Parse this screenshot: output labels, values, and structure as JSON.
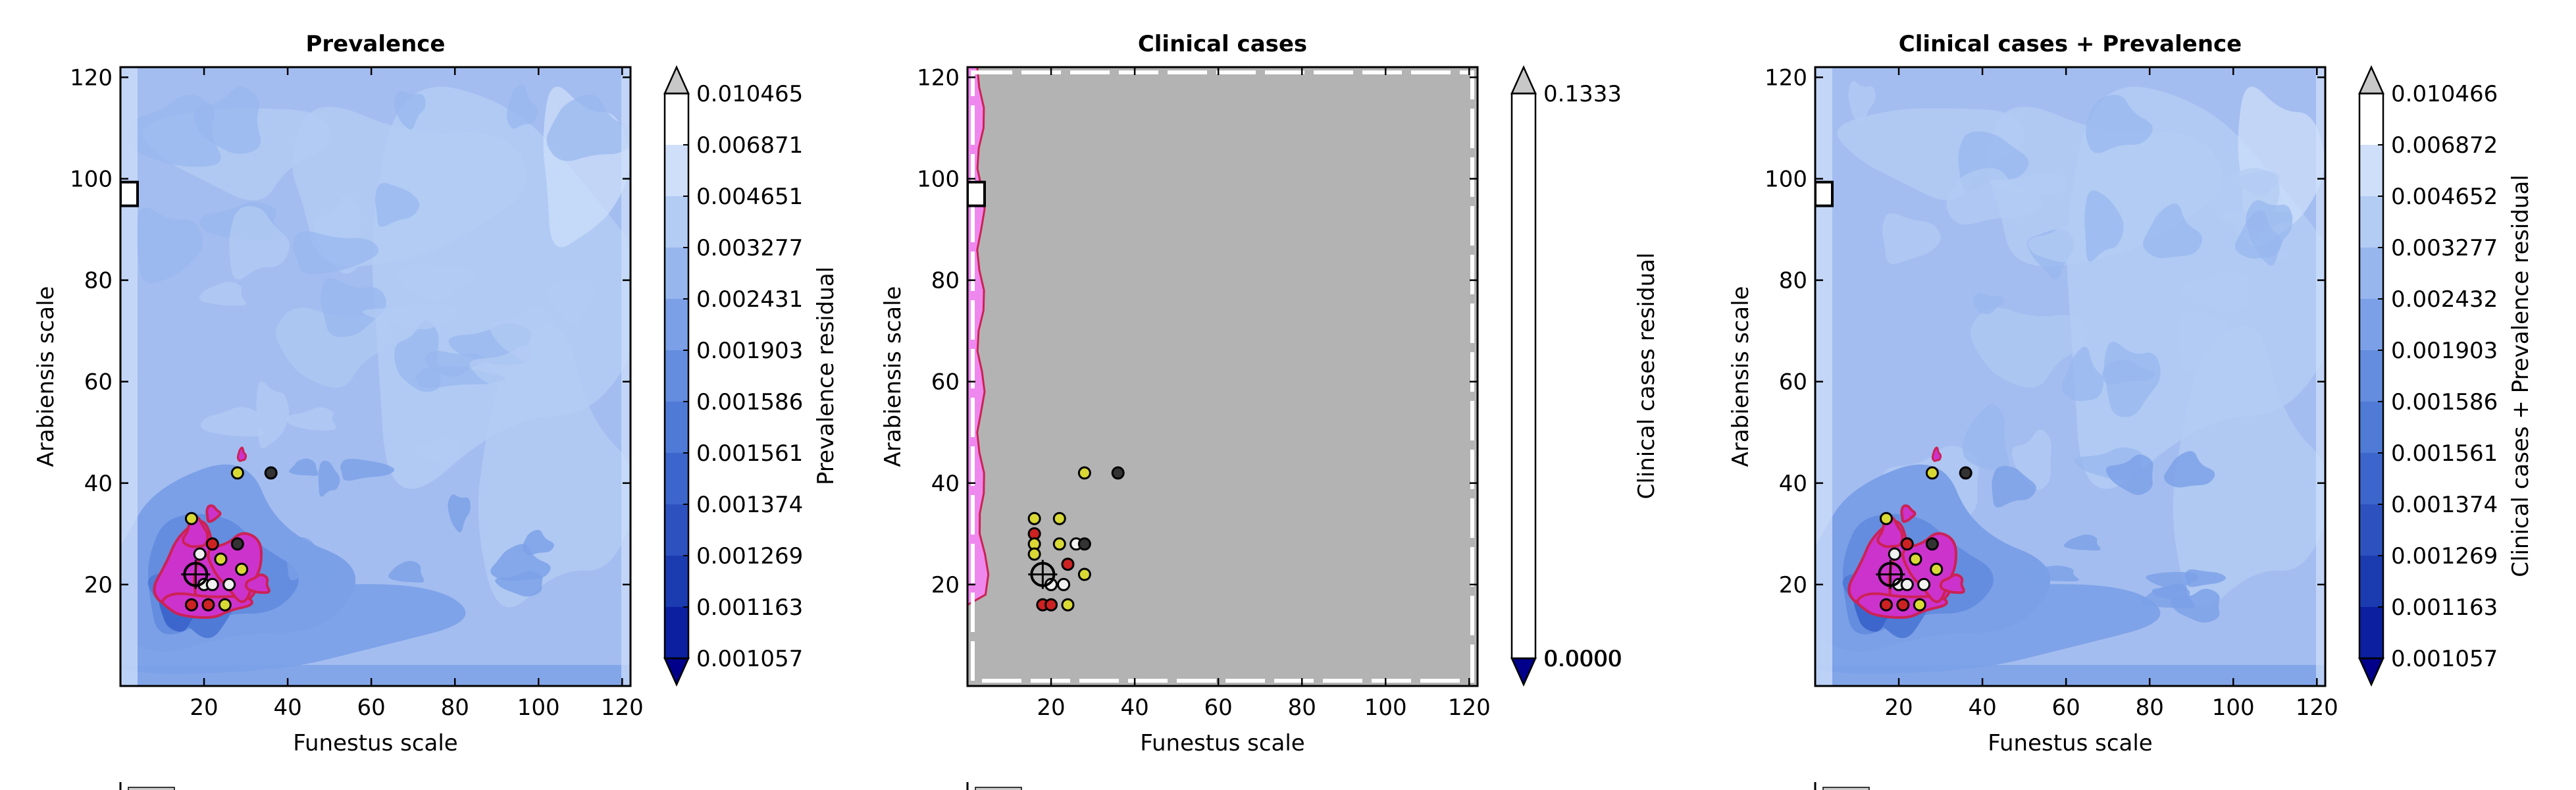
{
  "figure": {
    "background": "#ffffff",
    "frame_color": "#000000",
    "contour_palette": [
      "#00008b",
      "#0b1fa0",
      "#1b3bb0",
      "#2d52c0",
      "#3c66cc",
      "#4f7ad6",
      "#648ddf",
      "#7ba0e7",
      "#97b6ee",
      "#b3ccf4",
      "#cfdff9",
      "#ffffff"
    ],
    "contour_base": "#a4bdf0",
    "clinical_background": "#b3b3b3",
    "hotspot_fill": "#cc33cc",
    "hotspot_edge": "#cc2255",
    "point_colors": {
      "yellow": "#d9d936",
      "black": "#333333",
      "red": "#cc2222",
      "white": "#f0f0f0"
    }
  },
  "chart_data": [
    {
      "type": "heatmap",
      "title": "Prevalence",
      "xlabel": "Funestus scale",
      "ylabel": "Arabiensis scale",
      "xlim": [
        0,
        122
      ],
      "ylim": [
        0,
        122
      ],
      "xticks": [
        "20",
        "40",
        "60",
        "80",
        "100",
        "120"
      ],
      "yticks": [
        "20",
        "40",
        "60",
        "80",
        "100",
        "120"
      ],
      "colorbar": {
        "label": "Prevalence residual",
        "levels": [
          "0.010465",
          "0.006871",
          "0.004651",
          "0.003277",
          "0.002431",
          "0.001903",
          "0.001586",
          "0.001561",
          "0.001374",
          "0.001269",
          "0.001163",
          "0.001057"
        ],
        "extend": "both"
      },
      "best_region": {
        "x": 18,
        "y": 22
      },
      "marker_box": {
        "x": 0,
        "y": 97
      },
      "points": [
        {
          "x": 17,
          "y": 33,
          "color": "yellow"
        },
        {
          "x": 28,
          "y": 42,
          "color": "yellow"
        },
        {
          "x": 36,
          "y": 42,
          "color": "black"
        },
        {
          "x": 22,
          "y": 28,
          "color": "red"
        },
        {
          "x": 28,
          "y": 28,
          "color": "black"
        },
        {
          "x": 24,
          "y": 25,
          "color": "yellow"
        },
        {
          "x": 20,
          "y": 20,
          "color": "white"
        },
        {
          "x": 22,
          "y": 20,
          "color": "white"
        },
        {
          "x": 29,
          "y": 23,
          "color": "yellow"
        },
        {
          "x": 17,
          "y": 16,
          "color": "red"
        },
        {
          "x": 21,
          "y": 16,
          "color": "red"
        },
        {
          "x": 25,
          "y": 16,
          "color": "yellow"
        },
        {
          "x": 19,
          "y": 26,
          "color": "white"
        },
        {
          "x": 26,
          "y": 20,
          "color": "white"
        }
      ]
    },
    {
      "type": "heatmap",
      "title": "Clinical cases",
      "xlabel": "Funestus scale",
      "ylabel": "Arabiensis scale",
      "xlim": [
        0,
        122
      ],
      "ylim": [
        0,
        122
      ],
      "xticks": [
        "20",
        "40",
        "60",
        "80",
        "100",
        "120"
      ],
      "yticks": [
        "20",
        "40",
        "60",
        "80",
        "100",
        "120"
      ],
      "colorbar": {
        "label": "Clinical cases residual",
        "levels": [
          "0.1333",
          "0.0000",
          "0.0000"
        ],
        "extend": "both"
      },
      "best_region": {
        "x": 18,
        "y": 22
      },
      "marker_box": {
        "x": 0,
        "y": 97
      },
      "points": [
        {
          "x": 16,
          "y": 33,
          "color": "yellow"
        },
        {
          "x": 16,
          "y": 30,
          "color": "red"
        },
        {
          "x": 16,
          "y": 28,
          "color": "yellow"
        },
        {
          "x": 16,
          "y": 26,
          "color": "yellow"
        },
        {
          "x": 22,
          "y": 33,
          "color": "yellow"
        },
        {
          "x": 28,
          "y": 42,
          "color": "yellow"
        },
        {
          "x": 36,
          "y": 42,
          "color": "black"
        },
        {
          "x": 22,
          "y": 28,
          "color": "yellow"
        },
        {
          "x": 26,
          "y": 28,
          "color": "white"
        },
        {
          "x": 28,
          "y": 28,
          "color": "black"
        },
        {
          "x": 24,
          "y": 24,
          "color": "red"
        },
        {
          "x": 20,
          "y": 20,
          "color": "white"
        },
        {
          "x": 23,
          "y": 20,
          "color": "white"
        },
        {
          "x": 28,
          "y": 22,
          "color": "yellow"
        },
        {
          "x": 18,
          "y": 16,
          "color": "red"
        },
        {
          "x": 20,
          "y": 16,
          "color": "red"
        },
        {
          "x": 24,
          "y": 16,
          "color": "yellow"
        }
      ]
    },
    {
      "type": "heatmap",
      "title": "Clinical cases + Prevalence",
      "xlabel": "Funestus scale",
      "ylabel": "Arabiensis scale",
      "xlim": [
        0,
        122
      ],
      "ylim": [
        0,
        122
      ],
      "xticks": [
        "20",
        "40",
        "60",
        "80",
        "100",
        "120"
      ],
      "yticks": [
        "20",
        "40",
        "60",
        "80",
        "100",
        "120"
      ],
      "colorbar": {
        "label": "Clinical cases + Prevalence residual",
        "levels": [
          "0.010466",
          "0.006872",
          "0.004652",
          "0.003277",
          "0.002432",
          "0.001903",
          "0.001586",
          "0.001561",
          "0.001374",
          "0.001269",
          "0.001163",
          "0.001057"
        ],
        "extend": "both"
      },
      "best_region": {
        "x": 18,
        "y": 22
      },
      "marker_box": {
        "x": 0,
        "y": 97
      },
      "points": [
        {
          "x": 17,
          "y": 33,
          "color": "yellow"
        },
        {
          "x": 28,
          "y": 42,
          "color": "yellow"
        },
        {
          "x": 36,
          "y": 42,
          "color": "black"
        },
        {
          "x": 22,
          "y": 28,
          "color": "red"
        },
        {
          "x": 28,
          "y": 28,
          "color": "black"
        },
        {
          "x": 24,
          "y": 25,
          "color": "yellow"
        },
        {
          "x": 20,
          "y": 20,
          "color": "white"
        },
        {
          "x": 22,
          "y": 20,
          "color": "white"
        },
        {
          "x": 29,
          "y": 23,
          "color": "yellow"
        },
        {
          "x": 17,
          "y": 16,
          "color": "red"
        },
        {
          "x": 21,
          "y": 16,
          "color": "red"
        },
        {
          "x": 25,
          "y": 16,
          "color": "yellow"
        },
        {
          "x": 19,
          "y": 26,
          "color": "white"
        },
        {
          "x": 26,
          "y": 20,
          "color": "white"
        }
      ]
    }
  ]
}
